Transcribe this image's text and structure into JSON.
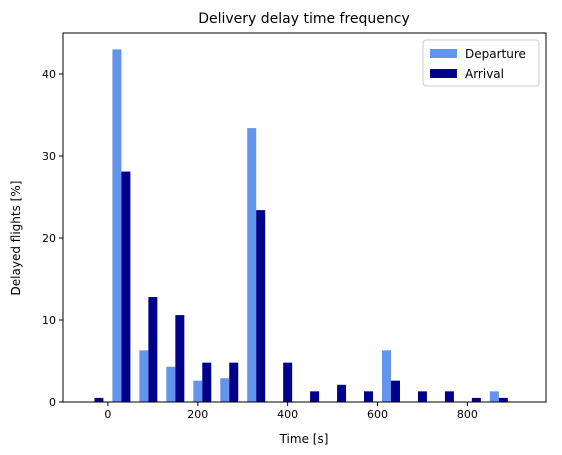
{
  "chart_data": {
    "type": "bar",
    "title": "Delivery delay time frequency",
    "xlabel": "Time [s]",
    "ylabel": "Delayed flights [%]",
    "xlim": [
      -100,
      975
    ],
    "ylim": [
      0,
      45
    ],
    "xticks": [
      0,
      200,
      400,
      600,
      800
    ],
    "yticks": [
      0,
      10,
      20,
      30,
      40
    ],
    "grid": false,
    "legend_position": "top-right",
    "bar_width": 20,
    "bin_centers": [
      -30,
      30,
      90,
      150,
      210,
      270,
      330,
      390,
      450,
      510,
      570,
      630,
      690,
      750,
      810,
      870
    ],
    "series": [
      {
        "name": "Departure",
        "color": "#6495ed",
        "values": [
          0,
          43.0,
          6.3,
          4.3,
          2.6,
          2.9,
          33.4,
          0,
          0,
          0,
          0,
          6.3,
          0,
          0,
          0,
          1.3
        ]
      },
      {
        "name": "Arrival",
        "color": "#00008b",
        "values": [
          0.5,
          28.1,
          12.8,
          10.6,
          4.8,
          4.8,
          23.4,
          4.8,
          1.3,
          2.1,
          1.3,
          2.6,
          1.3,
          1.3,
          0.5,
          0.5
        ]
      }
    ]
  }
}
